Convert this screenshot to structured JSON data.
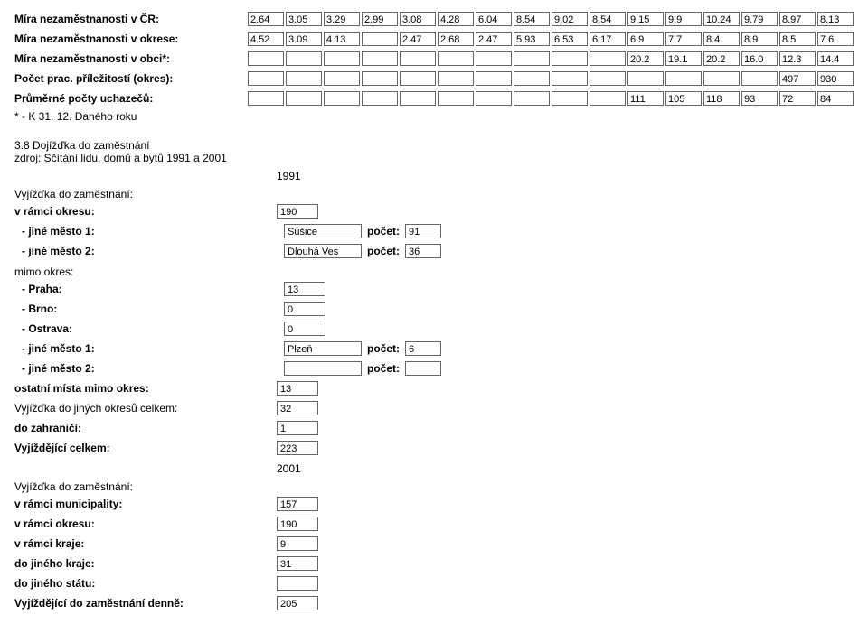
{
  "top": {
    "rows": [
      {
        "label": "Míra nezaměstnanosti v ČR:",
        "values": [
          "2.64",
          "3.05",
          "3.29",
          "2.99",
          "3.08",
          "4.28",
          "6.04",
          "8.54",
          "9.02",
          "8.54",
          "9.15",
          "9.9",
          "10.24",
          "9.79",
          "8.97",
          "8.13"
        ]
      },
      {
        "label": "Míra nezaměstnanosti v okrese:",
        "values": [
          "4.52",
          "3.09",
          "4.13",
          "",
          "2.47",
          "2.68",
          "2.47",
          "5.93",
          "6.53",
          "6.17",
          "6.9",
          "7.7",
          "8.4",
          "8.9",
          "8.5",
          "7.6"
        ]
      },
      {
        "label": "Míra nezaměstnanosti v obci*:",
        "values": [
          "",
          "",
          "",
          "",
          "",
          "",
          "",
          "",
          "",
          "",
          "20.2",
          "19.1",
          "20.2",
          "16.0",
          "12.3",
          "14.4"
        ]
      },
      {
        "label": "Počet prac. příležitostí (okres):",
        "values": [
          "",
          "",
          "",
          "",
          "",
          "",
          "",
          "",
          "",
          "",
          "",
          "",
          "",
          "",
          "497",
          "930"
        ]
      },
      {
        "label": "Průměrné počty uchazečů:",
        "values": [
          "",
          "",
          "",
          "",
          "",
          "",
          "",
          "",
          "",
          "",
          "111",
          "105",
          "118",
          "93",
          "72",
          "84"
        ]
      }
    ],
    "note": "* - K 31. 12. Daného roku"
  },
  "section": {
    "heading_line1": "3.8 Dojížďka do zaměstnání",
    "heading_line2": "zdroj: Sčítání lidu, domů a bytů 1991 a 2001",
    "year1991": "1991",
    "year2001": "2001",
    "labels": {
      "vyjizdka": "Vyjížďka do zaměstnání:",
      "v_ramci_okresu": "v rámci okresu:",
      "jine_mesto_1": "- jiné město 1:",
      "jine_mesto_2": "- jiné město 2:",
      "mimo_okres": "mimo okres:",
      "praha": "- Praha:",
      "brno": "- Brno:",
      "ostrava": "- Ostrava:",
      "pocet": "počet:",
      "ostatni": "ostatní místa mimo okres:",
      "do_jinych_okresu": "Vyjížďka do jiných okresů celkem:",
      "do_zahranici": "do zahraničí:",
      "celkem": "Vyjíždějící celkem:",
      "v_ramci_municipality": "v rámci municipality:",
      "v_ramci_kraje": "v rámci kraje:",
      "do_jineho_kraje": "do jiného kraje:",
      "do_jineho_statu": "do jiného státu:",
      "denne": "Vyjíždějící do zaměstnání denně:"
    },
    "values": {
      "v_ramci_okresu_1991": "190",
      "j1_city": "Sušice",
      "j1_count": "91",
      "j2_city": "Dlouhá Ves",
      "j2_count": "36",
      "praha": "13",
      "brno": "0",
      "ostrava": "0",
      "j1b_city": "Plzeň",
      "j1b_count": "6",
      "j2b_city": "",
      "j2b_count": "",
      "ostatni": "13",
      "do_jinych_okresu": "32",
      "do_zahranici": "1",
      "celkem": "223",
      "v_ramci_municipality": "157",
      "v_ramci_okresu_2001": "190",
      "v_ramci_kraje": "9",
      "do_jineho_kraje": "31",
      "do_jineho_statu": "",
      "denne": "205"
    }
  }
}
